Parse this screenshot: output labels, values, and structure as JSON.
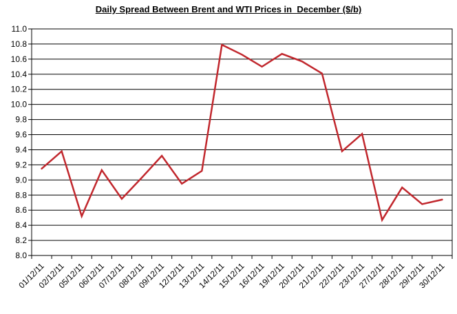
{
  "title": "Daily Spread Between Brent and WTI Prices in  December ($/b)",
  "chart_data": {
    "type": "line",
    "title": "Daily Spread Between Brent and WTI Prices in  December ($/b)",
    "categories": [
      "01/12/11",
      "02/12/11",
      "05/12/11",
      "06/12/11",
      "07/12/11",
      "08/12/11",
      "09/12/11",
      "12/12/11",
      "13/12/11",
      "14/12/11",
      "15/12/11",
      "16/12/11",
      "19/12/11",
      "20/12/11",
      "21/12/11",
      "22/12/11",
      "23/12/11",
      "27/12/11",
      "28/12/11",
      "29/12/11",
      "30/12/11"
    ],
    "values": [
      9.15,
      9.38,
      8.52,
      9.13,
      8.75,
      9.03,
      9.32,
      8.95,
      9.12,
      10.79,
      10.66,
      10.5,
      10.67,
      10.57,
      10.41,
      9.38,
      9.61,
      8.47,
      8.9,
      8.68,
      8.74
    ],
    "xlabel": "",
    "ylabel": "",
    "ylim": [
      8.0,
      11.0
    ],
    "ytick_step": 0.2,
    "ytick_format_decimals": 1,
    "grid": true,
    "legend": "none",
    "colors": {
      "series_line": "#c1272d",
      "grid_line": "#000000",
      "axis_line": "#000000",
      "text": "#000000",
      "background": "#ffffff"
    }
  }
}
